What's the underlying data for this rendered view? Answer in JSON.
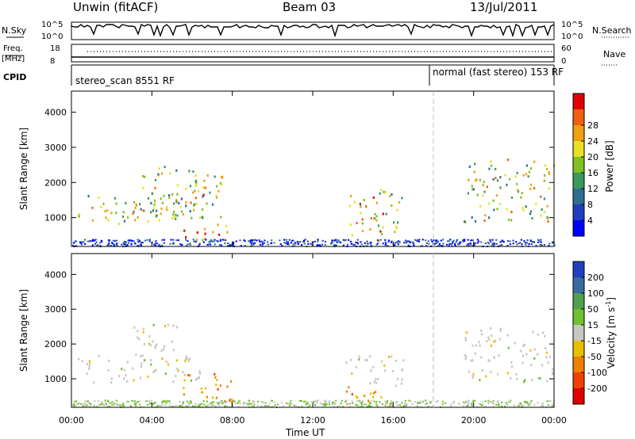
{
  "header": {
    "station": "Unwin (fitACF)",
    "beam": "Beam 03",
    "date": "13/Jul/2011"
  },
  "nsky_panel": {
    "left_label": "N.Sky",
    "right_label": "N.Search",
    "left_ticks": [
      "10^5",
      "10^0"
    ],
    "right_ticks": [
      "10^5",
      "10^0"
    ]
  },
  "freq_panel": {
    "left_label_1": "Freq.",
    "left_label_2": "[MHz]",
    "right_label": "Nave",
    "left_ticks": [
      "18",
      "8"
    ],
    "right_ticks": [
      "60",
      "0"
    ]
  },
  "cpid_panel": {
    "label": "CPID",
    "mode_1": "stereo_scan 8551 RF",
    "mode_2": "normal (fast stereo) 153 RF"
  },
  "chart_data": [
    {
      "type": "heatmap",
      "name": "power",
      "ylabel": "Slant Range [km]",
      "yticks": [
        1000,
        2000,
        3000,
        4000
      ],
      "ylim": [
        180,
        4600
      ],
      "colorbar": {
        "label": "Power [dB]",
        "ticks": [
          4,
          8,
          12,
          16,
          20,
          24,
          28
        ],
        "colors": [
          "#0000ff",
          "#1f3fbf",
          "#2e6f8f",
          "#3a9a5a",
          "#80c020",
          "#e8e020",
          "#f0a010",
          "#f06010",
          "#e00000"
        ]
      },
      "regions": [
        {
          "t0": 0.3,
          "t1": 6.2,
          "r0": 850,
          "r1": 1700,
          "level": "med"
        },
        {
          "t0": 3.0,
          "t1": 7.5,
          "r0": 1000,
          "r1": 2500,
          "level": "med"
        },
        {
          "t0": 5.5,
          "t1": 7.8,
          "r0": 350,
          "r1": 900,
          "level": "high"
        },
        {
          "t0": 5.8,
          "t1": 6.6,
          "r0": 1100,
          "r1": 1700,
          "level": "high"
        },
        {
          "t0": 13.8,
          "t1": 15.5,
          "r0": 350,
          "r1": 1700,
          "level": "high"
        },
        {
          "t0": 15.0,
          "t1": 16.4,
          "r0": 600,
          "r1": 1900,
          "level": "med"
        },
        {
          "t0": 19.5,
          "t1": 24.0,
          "r0": 900,
          "r1": 2700,
          "level": "med"
        }
      ]
    },
    {
      "type": "heatmap",
      "name": "velocity",
      "ylabel": "Slant Range [km]",
      "yticks": [
        1000,
        2000,
        3000,
        4000
      ],
      "ylim": [
        180,
        4600
      ],
      "xlabel": "Time UT",
      "xticks": [
        "00:00",
        "04:00",
        "08:00",
        "12:00",
        "16:00",
        "20:00",
        "00:00"
      ],
      "xlim": [
        0,
        24
      ],
      "colorbar": {
        "label": "Velocity [m s",
        "label_sup": "-1",
        "label_end": "]",
        "ticks": [
          200,
          100,
          50,
          15,
          -15,
          -50,
          -100,
          -200
        ],
        "colors": [
          "#2040c0",
          "#3a6aa0",
          "#50a050",
          "#70c030",
          "#c8c8c0",
          "#e8c000",
          "#f08000",
          "#f04000",
          "#e00000"
        ]
      },
      "regions": [
        {
          "t0": 0.3,
          "t1": 6.5,
          "r0": 850,
          "r1": 1700,
          "level": "gray"
        },
        {
          "t0": 3.0,
          "t1": 5.3,
          "r0": 1600,
          "r1": 2600,
          "level": "gray"
        },
        {
          "t0": 5.5,
          "t1": 8.0,
          "r0": 350,
          "r1": 1200,
          "level": "orange"
        },
        {
          "t0": 13.5,
          "t1": 16.5,
          "r0": 800,
          "r1": 1700,
          "level": "gray"
        },
        {
          "t0": 13.5,
          "t1": 16.0,
          "r0": 300,
          "r1": 800,
          "level": "orange"
        },
        {
          "t0": 19.5,
          "t1": 24.0,
          "r0": 900,
          "r1": 2500,
          "level": "gray"
        }
      ]
    }
  ],
  "mode_change_time": 18.0
}
